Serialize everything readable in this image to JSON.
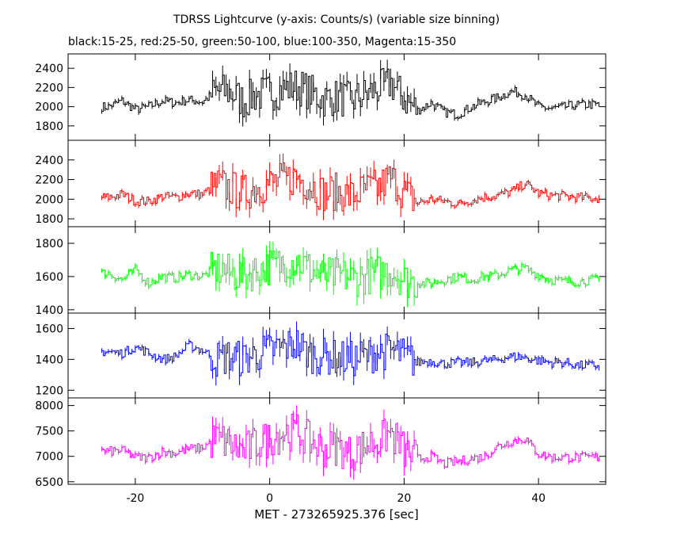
{
  "chart_data": {
    "type": "line",
    "title": "TDRSS Lightcurve (y-axis: Counts/s) (variable size binning)",
    "subtitle": "black:15-25, red:25-50, green:50-100, blue:100-350, Magenta:15-350",
    "xlabel": "MET - 273265925.376 [sec]",
    "xlim": [
      -30,
      50
    ],
    "xticks": [
      -20,
      0,
      20,
      40
    ],
    "panels": [
      {
        "name": "15-25",
        "color": "#000000",
        "ylim": [
          1650,
          2550
        ],
        "yticks": [
          1800,
          2000,
          2200,
          2400
        ],
        "x": [
          -24,
          -22,
          -20,
          -18,
          -16,
          -14,
          -12,
          -10,
          -8,
          -6,
          -4,
          -2,
          0,
          2,
          4,
          6,
          8,
          10,
          12,
          14,
          16,
          18,
          20,
          22,
          24,
          26,
          28,
          30,
          32,
          34,
          36,
          38,
          40,
          42,
          44,
          46,
          48
        ],
        "y": [
          2000,
          2060,
          1970,
          2000,
          2060,
          2040,
          2070,
          2050,
          2160,
          2150,
          2060,
          2120,
          2150,
          2180,
          2220,
          2150,
          2080,
          2100,
          2060,
          2120,
          2180,
          2240,
          2080,
          1960,
          2040,
          1940,
          1920,
          2000,
          2050,
          2100,
          2160,
          2120,
          2000,
          1980,
          2000,
          2020,
          2020
        ]
      },
      {
        "name": "25-50",
        "color": "#ff0000",
        "ylim": [
          1720,
          2600
        ],
        "yticks": [
          1800,
          2000,
          2200,
          2400
        ],
        "x": [
          -24,
          -22,
          -20,
          -18,
          -16,
          -14,
          -12,
          -10,
          -8,
          -6,
          -4,
          -2,
          0,
          2,
          4,
          6,
          8,
          10,
          12,
          14,
          16,
          18,
          20,
          22,
          24,
          26,
          28,
          30,
          32,
          34,
          36,
          38,
          40,
          42,
          44,
          46,
          48
        ],
        "y": [
          2020,
          2050,
          1980,
          1980,
          2030,
          2020,
          2060,
          2050,
          2150,
          2110,
          2060,
          2120,
          2160,
          2190,
          2230,
          2140,
          2060,
          2080,
          2030,
          2090,
          2120,
          2220,
          2060,
          1960,
          2000,
          1980,
          1950,
          1990,
          2020,
          2040,
          2080,
          2160,
          2060,
          2040,
          2030,
          2020,
          2010
        ]
      },
      {
        "name": "50-100",
        "color": "#00ff00",
        "ylim": [
          1380,
          1900
        ],
        "yticks": [
          1400,
          1600,
          1800
        ],
        "x": [
          -24,
          -22,
          -20,
          -18,
          -16,
          -14,
          -12,
          -10,
          -8,
          -6,
          -4,
          -2,
          0,
          2,
          4,
          6,
          8,
          10,
          12,
          14,
          16,
          18,
          20,
          22,
          24,
          26,
          28,
          30,
          32,
          34,
          36,
          38,
          40,
          42,
          44,
          46,
          48
        ],
        "y": [
          1620,
          1580,
          1640,
          1560,
          1600,
          1590,
          1610,
          1600,
          1650,
          1620,
          1600,
          1640,
          1660,
          1680,
          1700,
          1640,
          1600,
          1610,
          1590,
          1600,
          1620,
          1640,
          1580,
          1560,
          1560,
          1580,
          1600,
          1580,
          1600,
          1610,
          1640,
          1650,
          1610,
          1580,
          1570,
          1570,
          1580
        ]
      },
      {
        "name": "100-350",
        "color": "#0000ff",
        "ylim": [
          1150,
          1700
        ],
        "yticks": [
          1200,
          1400,
          1600
        ],
        "x": [
          -24,
          -22,
          -20,
          -18,
          -16,
          -14,
          -12,
          -10,
          -8,
          -6,
          -4,
          -2,
          0,
          2,
          4,
          6,
          8,
          10,
          12,
          14,
          16,
          18,
          20,
          22,
          24,
          26,
          28,
          30,
          32,
          34,
          36,
          38,
          40,
          42,
          44,
          46,
          48
        ],
        "y": [
          1450,
          1440,
          1480,
          1440,
          1400,
          1420,
          1490,
          1460,
          1400,
          1420,
          1400,
          1430,
          1460,
          1480,
          1500,
          1430,
          1420,
          1410,
          1400,
          1420,
          1440,
          1460,
          1420,
          1380,
          1390,
          1370,
          1380,
          1380,
          1390,
          1400,
          1420,
          1410,
          1390,
          1380,
          1380,
          1360,
          1360
        ]
      },
      {
        "name": "15-350",
        "color": "#ff00ff",
        "ylim": [
          6450,
          8150
        ],
        "yticks": [
          6500,
          7000,
          7500,
          8000
        ],
        "x": [
          -24,
          -22,
          -20,
          -18,
          -16,
          -14,
          -12,
          -10,
          -8,
          -6,
          -4,
          -2,
          0,
          2,
          4,
          6,
          8,
          10,
          12,
          14,
          16,
          18,
          20,
          22,
          24,
          26,
          28,
          30,
          32,
          34,
          36,
          38,
          40,
          42,
          44,
          46,
          48
        ],
        "y": [
          7100,
          7120,
          6980,
          6970,
          7090,
          7060,
          7150,
          7170,
          7350,
          7250,
          7100,
          7250,
          7350,
          7450,
          7500,
          7300,
          7150,
          7180,
          7050,
          7200,
          7300,
          7450,
          7100,
          6950,
          7000,
          6850,
          6900,
          6950,
          7000,
          7200,
          7300,
          7350,
          7050,
          6980,
          6980,
          6980,
          6980
        ]
      }
    ]
  }
}
